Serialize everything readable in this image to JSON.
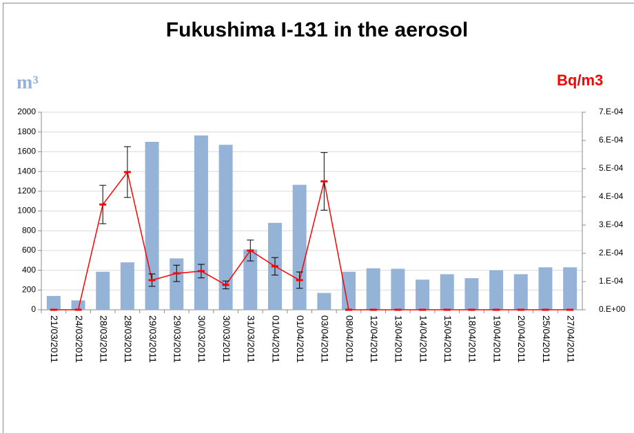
{
  "chart_data": {
    "type": "bar-line",
    "title": "Fukushima I-131 in the aerosol",
    "y_label": "m³",
    "y2_label": "Bq/m3",
    "categories": [
      "21/03/2011",
      "24/03/2011",
      "28/03/2011",
      "28/03/2011",
      "29/03/2011",
      "29/03/2011",
      "30/03/2011",
      "30/03/2011",
      "31/03/2011",
      "01/04/2011",
      "01/04/2011",
      "03/04/2011",
      "08/04/2011",
      "12/04/2011",
      "13/04/2011",
      "14/04/2011",
      "15/04/2011",
      "18/04/2011",
      "19/04/2011",
      "20/04/2011",
      "25/04/2011",
      "27/04/2011"
    ],
    "series": [
      {
        "type": "bar",
        "color": "#95b3d7",
        "values": [
          140,
          95,
          385,
          480,
          1700,
          520,
          1765,
          1670,
          610,
          880,
          1265,
          170,
          385,
          420,
          415,
          305,
          360,
          320,
          400,
          360,
          430,
          430
        ]
      },
      {
        "type": "line",
        "axis": "y2",
        "color": "#ff0000",
        "values": [
          0,
          0,
          0.000373,
          0.000488,
          0.000105,
          0.000129,
          0.000137,
          8.8e-05,
          0.00021,
          0.000154,
          0.000105,
          0.000455,
          0,
          0,
          0,
          0,
          0,
          0,
          0,
          0,
          0,
          0
        ],
        "errors": [
          0,
          0,
          6.8e-05,
          9e-05,
          2.2e-05,
          2.9e-05,
          2.4e-05,
          1.4e-05,
          3.7e-05,
          3.1e-05,
          2.9e-05,
          0.000102,
          0,
          0,
          0,
          0,
          0,
          0,
          0,
          0,
          0,
          0
        ]
      }
    ],
    "ylim": [
      0,
      2000
    ],
    "yticks": [
      0,
      200,
      400,
      600,
      800,
      1000,
      1200,
      1400,
      1600,
      1800,
      2000
    ],
    "y2lim": [
      0,
      0.0007
    ],
    "y2ticks": [
      {
        "value": 0,
        "label": "0.E+00"
      },
      {
        "value": 0.0001,
        "label": "1.E-04"
      },
      {
        "value": 0.0002,
        "label": "2.E-04"
      },
      {
        "value": 0.0003,
        "label": "3.E-04"
      },
      {
        "value": 0.0004,
        "label": "4.E-04"
      },
      {
        "value": 0.0005,
        "label": "5.E-04"
      },
      {
        "value": 0.0006,
        "label": "6.E-04"
      },
      {
        "value": 0.0007,
        "label": "7.E-04"
      }
    ],
    "grid": true
  }
}
